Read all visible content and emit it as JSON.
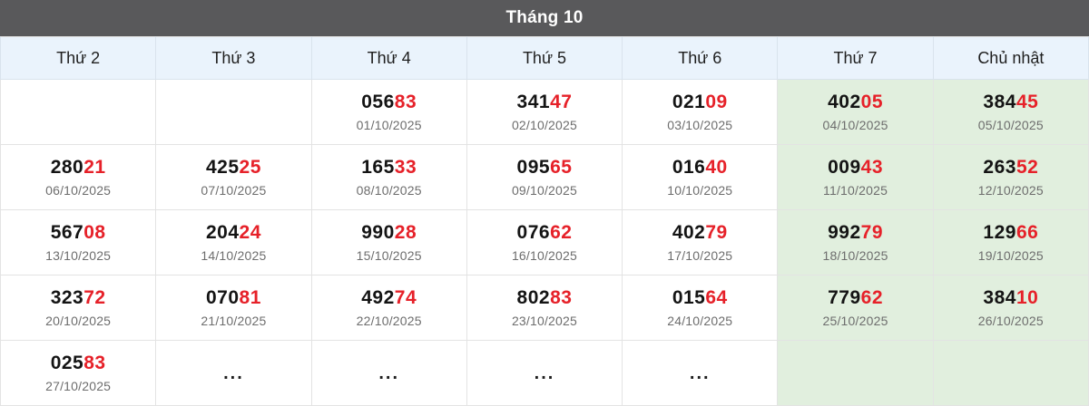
{
  "title": "Tháng 10",
  "colors": {
    "title_bar_bg": "#59595b",
    "title_text": "#ffffff",
    "header_bg": "#eaf3fc",
    "weekend_bg": "#e1efde",
    "number_black": "#141414",
    "number_red": "#e62129",
    "date_gray": "#6d6d6d",
    "border": "#e3e3e3"
  },
  "weekday_headers": [
    "Thứ 2",
    "Thứ 3",
    "Thứ 4",
    "Thứ 5",
    "Thứ 6",
    "Thứ 7",
    "Chủ nhật"
  ],
  "weeks": [
    [
      {},
      {},
      {
        "number": "056",
        "suffix": "83",
        "date": "01/10/2025"
      },
      {
        "number": "341",
        "suffix": "47",
        "date": "02/10/2025"
      },
      {
        "number": "021",
        "suffix": "09",
        "date": "03/10/2025"
      },
      {
        "number": "402",
        "suffix": "05",
        "date": "04/10/2025"
      },
      {
        "number": "384",
        "suffix": "45",
        "date": "05/10/2025"
      }
    ],
    [
      {
        "number": "280",
        "suffix": "21",
        "date": "06/10/2025"
      },
      {
        "number": "425",
        "suffix": "25",
        "date": "07/10/2025"
      },
      {
        "number": "165",
        "suffix": "33",
        "date": "08/10/2025"
      },
      {
        "number": "095",
        "suffix": "65",
        "date": "09/10/2025"
      },
      {
        "number": "016",
        "suffix": "40",
        "date": "10/10/2025"
      },
      {
        "number": "009",
        "suffix": "43",
        "date": "11/10/2025"
      },
      {
        "number": "263",
        "suffix": "52",
        "date": "12/10/2025"
      }
    ],
    [
      {
        "number": "567",
        "suffix": "08",
        "date": "13/10/2025"
      },
      {
        "number": "204",
        "suffix": "24",
        "date": "14/10/2025"
      },
      {
        "number": "990",
        "suffix": "28",
        "date": "15/10/2025"
      },
      {
        "number": "076",
        "suffix": "62",
        "date": "16/10/2025"
      },
      {
        "number": "402",
        "suffix": "79",
        "date": "17/10/2025"
      },
      {
        "number": "992",
        "suffix": "79",
        "date": "18/10/2025"
      },
      {
        "number": "129",
        "suffix": "66",
        "date": "19/10/2025"
      }
    ],
    [
      {
        "number": "323",
        "suffix": "72",
        "date": "20/10/2025"
      },
      {
        "number": "070",
        "suffix": "81",
        "date": "21/10/2025"
      },
      {
        "number": "492",
        "suffix": "74",
        "date": "22/10/2025"
      },
      {
        "number": "802",
        "suffix": "83",
        "date": "23/10/2025"
      },
      {
        "number": "015",
        "suffix": "64",
        "date": "24/10/2025"
      },
      {
        "number": "779",
        "suffix": "62",
        "date": "25/10/2025"
      },
      {
        "number": "384",
        "suffix": "10",
        "date": "26/10/2025"
      }
    ],
    [
      {
        "number": "025",
        "suffix": "83",
        "date": "27/10/2025"
      },
      {
        "ellipsis": "..."
      },
      {
        "ellipsis": "..."
      },
      {
        "ellipsis": "..."
      },
      {
        "ellipsis": "..."
      },
      {},
      {}
    ]
  ]
}
